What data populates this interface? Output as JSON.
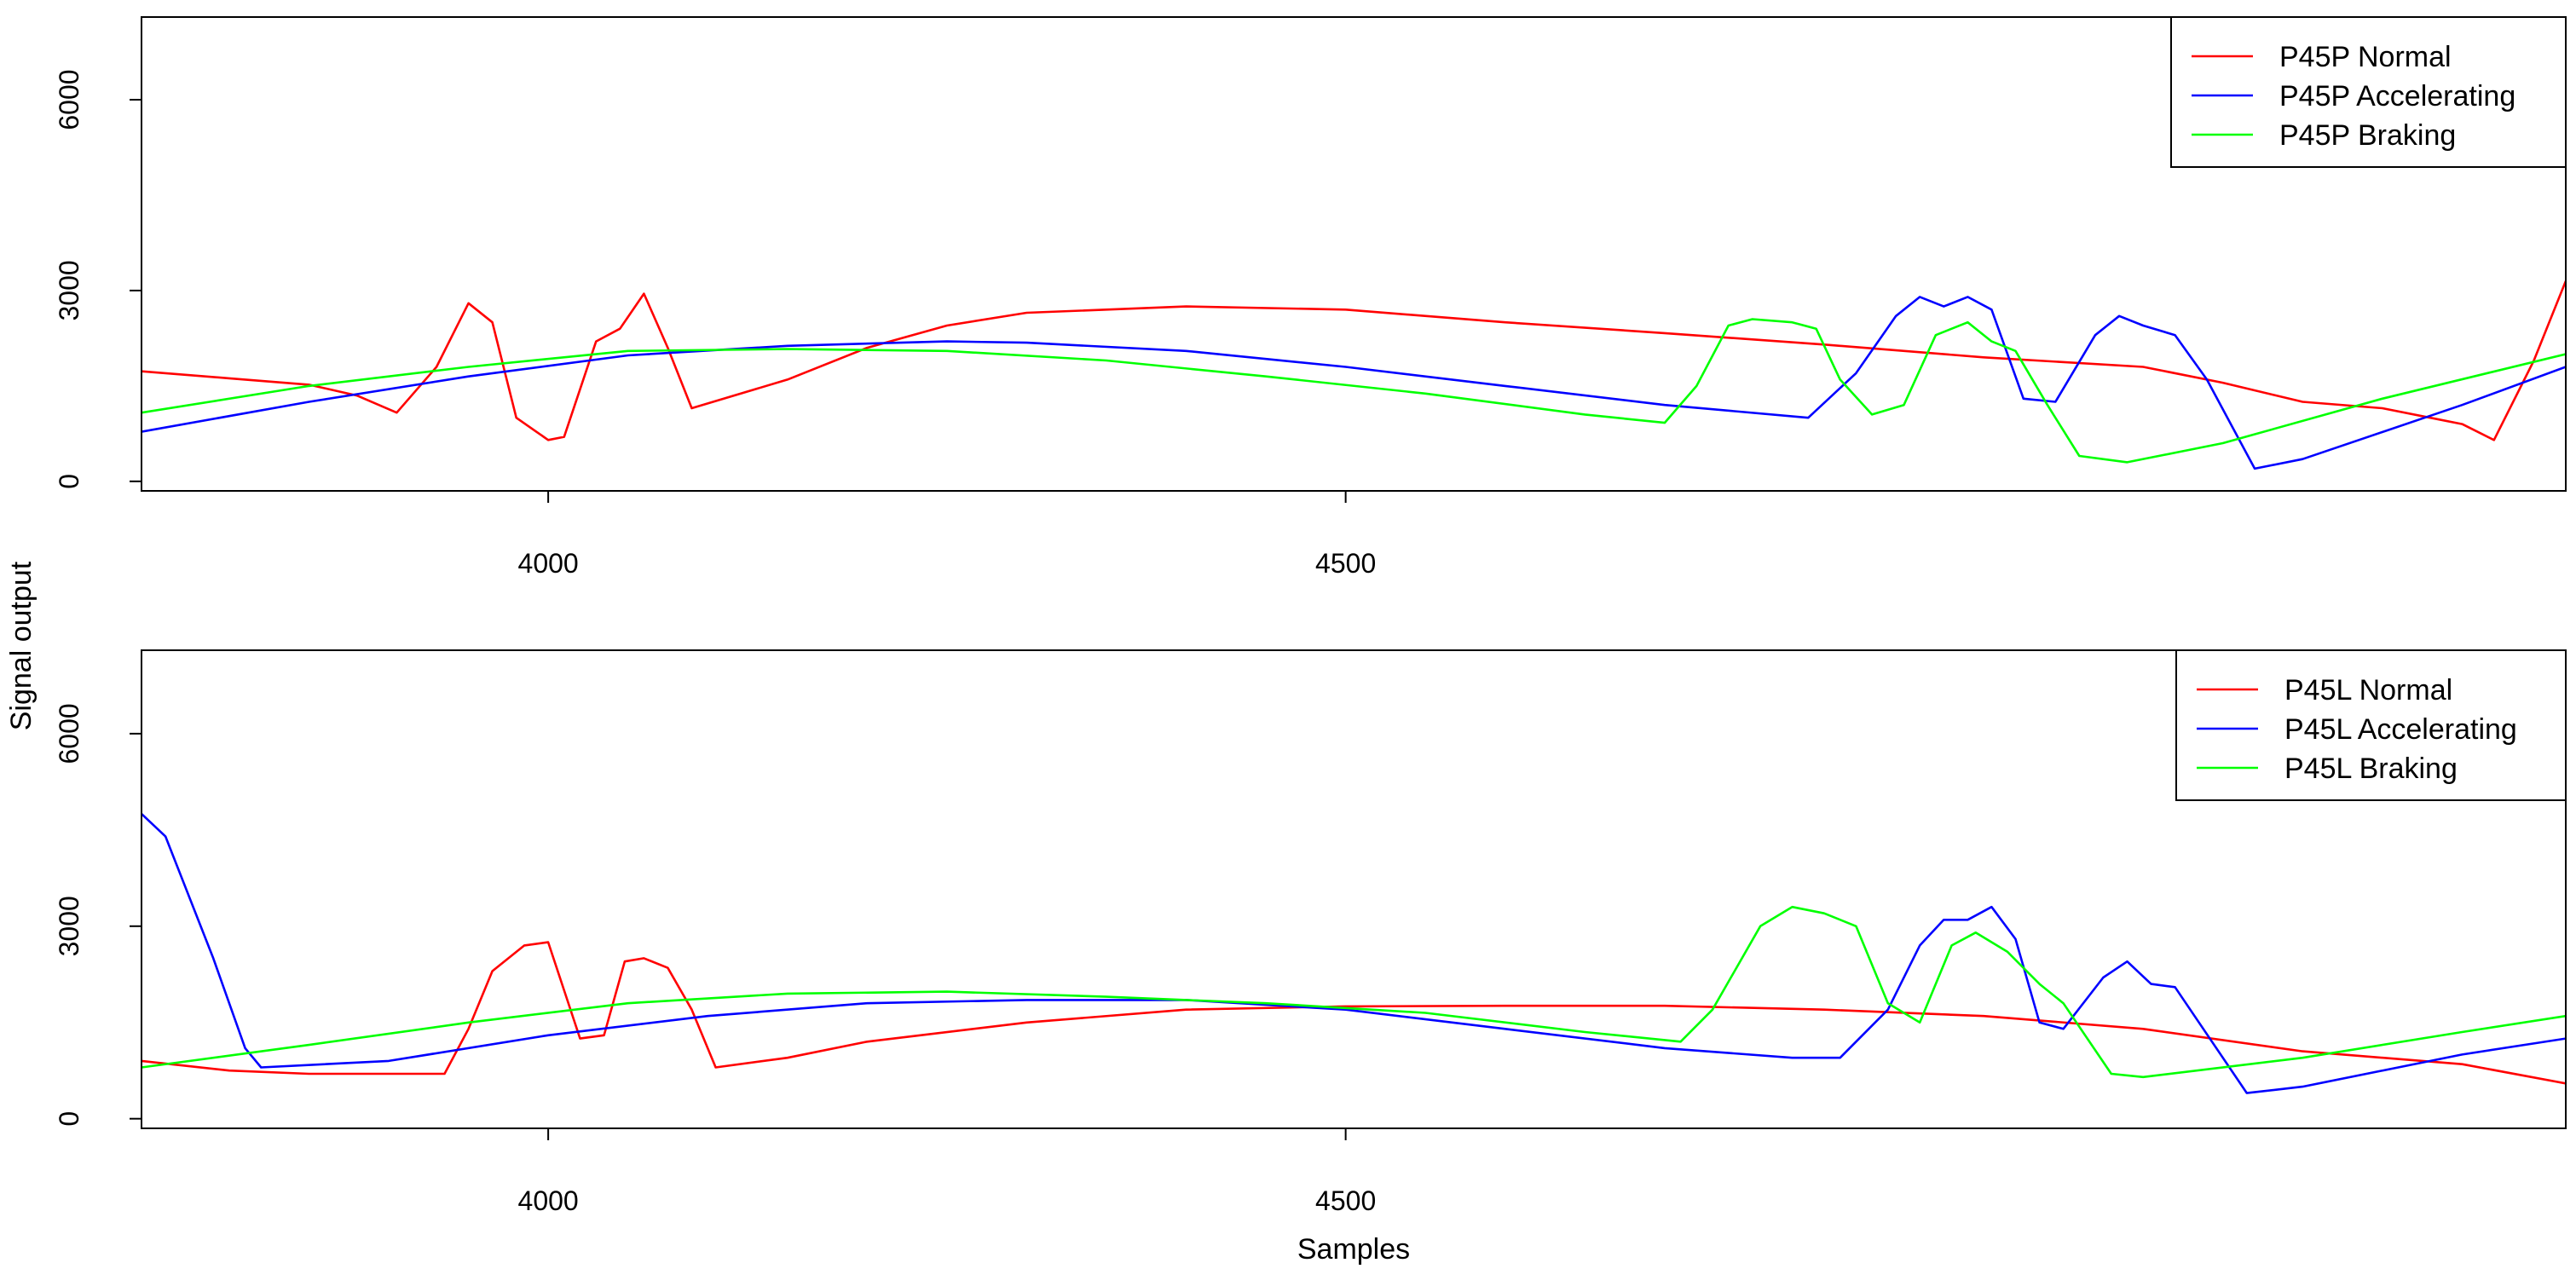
{
  "chart_data": [
    {
      "type": "line",
      "xlim": [
        3745,
        5265
      ],
      "ylim": [
        -150,
        7300
      ],
      "xticks": [
        4000,
        4500
      ],
      "yticks": [
        0,
        3000,
        6000
      ],
      "xtick_labels": [
        "4000",
        "4500"
      ],
      "ytick_labels": [
        "0",
        "3000",
        "6000"
      ],
      "legend_position": "top-right",
      "grid": false,
      "series": [
        {
          "name": "P45P Normal",
          "color": "#ff0000",
          "points": [
            [
              3745,
              1730
            ],
            [
              3800,
              1620
            ],
            [
              3850,
              1520
            ],
            [
              3880,
              1350
            ],
            [
              3905,
              1080
            ],
            [
              3930,
              1800
            ],
            [
              3950,
              2800
            ],
            [
              3965,
              2500
            ],
            [
              3980,
              1000
            ],
            [
              4000,
              650
            ],
            [
              4010,
              700
            ],
            [
              4030,
              2200
            ],
            [
              4045,
              2400
            ],
            [
              4060,
              2950
            ],
            [
              4075,
              2100
            ],
            [
              4090,
              1150
            ],
            [
              4150,
              1600
            ],
            [
              4200,
              2100
            ],
            [
              4250,
              2450
            ],
            [
              4300,
              2650
            ],
            [
              4400,
              2750
            ],
            [
              4500,
              2700
            ],
            [
              4600,
              2500
            ],
            [
              4700,
              2330
            ],
            [
              4800,
              2150
            ],
            [
              4900,
              1950
            ],
            [
              5000,
              1800
            ],
            [
              5050,
              1550
            ],
            [
              5100,
              1250
            ],
            [
              5150,
              1150
            ],
            [
              5180,
              1000
            ],
            [
              5200,
              900
            ],
            [
              5220,
              650
            ],
            [
              5245,
              1900
            ],
            [
              5265,
              3150
            ]
          ]
        },
        {
          "name": "P45P Accelerating",
          "color": "#0000ff",
          "points": [
            [
              3745,
              780
            ],
            [
              3850,
              1250
            ],
            [
              3950,
              1650
            ],
            [
              4050,
              1980
            ],
            [
              4150,
              2130
            ],
            [
              4250,
              2200
            ],
            [
              4300,
              2180
            ],
            [
              4400,
              2050
            ],
            [
              4500,
              1800
            ],
            [
              4600,
              1500
            ],
            [
              4700,
              1200
            ],
            [
              4790,
              1000
            ],
            [
              4820,
              1700
            ],
            [
              4845,
              2600
            ],
            [
              4860,
              2900
            ],
            [
              4875,
              2750
            ],
            [
              4890,
              2900
            ],
            [
              4905,
              2700
            ],
            [
              4925,
              1300
            ],
            [
              4945,
              1250
            ],
            [
              4970,
              2300
            ],
            [
              4985,
              2600
            ],
            [
              5000,
              2450
            ],
            [
              5020,
              2300
            ],
            [
              5040,
              1600
            ],
            [
              5070,
              200
            ],
            [
              5100,
              350
            ],
            [
              5200,
              1200
            ],
            [
              5265,
              1800
            ]
          ]
        },
        {
          "name": "P45P Braking",
          "color": "#00ff00",
          "points": [
            [
              3745,
              1080
            ],
            [
              3850,
              1500
            ],
            [
              3950,
              1800
            ],
            [
              4050,
              2050
            ],
            [
              4150,
              2080
            ],
            [
              4250,
              2050
            ],
            [
              4350,
              1900
            ],
            [
              4450,
              1650
            ],
            [
              4550,
              1380
            ],
            [
              4650,
              1050
            ],
            [
              4700,
              920
            ],
            [
              4720,
              1500
            ],
            [
              4740,
              2450
            ],
            [
              4755,
              2550
            ],
            [
              4780,
              2500
            ],
            [
              4795,
              2400
            ],
            [
              4810,
              1600
            ],
            [
              4830,
              1050
            ],
            [
              4850,
              1200
            ],
            [
              4870,
              2300
            ],
            [
              4890,
              2500
            ],
            [
              4905,
              2200
            ],
            [
              4920,
              2050
            ],
            [
              4940,
              1200
            ],
            [
              4960,
              400
            ],
            [
              4990,
              300
            ],
            [
              5050,
              600
            ],
            [
              5150,
              1300
            ],
            [
              5265,
              2000
            ]
          ]
        }
      ]
    },
    {
      "type": "line",
      "xlim": [
        3745,
        5265
      ],
      "ylim": [
        -150,
        7300
      ],
      "xticks": [
        4000,
        4500
      ],
      "yticks": [
        0,
        3000,
        6000
      ],
      "xtick_labels": [
        "4000",
        "4500"
      ],
      "ytick_labels": [
        "0",
        "3000",
        "6000"
      ],
      "xlabel": "Samples",
      "legend_position": "top-right",
      "grid": false,
      "series": [
        {
          "name": "P45L Normal",
          "color": "#ff0000",
          "points": [
            [
              3745,
              900
            ],
            [
              3800,
              750
            ],
            [
              3850,
              700
            ],
            [
              3935,
              700
            ],
            [
              3950,
              1400
            ],
            [
              3965,
              2300
            ],
            [
              3985,
              2700
            ],
            [
              4000,
              2750
            ],
            [
              4010,
              2000
            ],
            [
              4020,
              1250
            ],
            [
              4035,
              1300
            ],
            [
              4048,
              2450
            ],
            [
              4060,
              2500
            ],
            [
              4075,
              2350
            ],
            [
              4090,
              1700
            ],
            [
              4105,
              800
            ],
            [
              4150,
              950
            ],
            [
              4200,
              1200
            ],
            [
              4300,
              1500
            ],
            [
              4400,
              1700
            ],
            [
              4500,
              1750
            ],
            [
              4600,
              1760
            ],
            [
              4700,
              1760
            ],
            [
              4800,
              1700
            ],
            [
              4900,
              1600
            ],
            [
              5000,
              1400
            ],
            [
              5100,
              1050
            ],
            [
              5200,
              850
            ],
            [
              5265,
              550
            ]
          ]
        },
        {
          "name": "P45L Accelerating",
          "color": "#0000ff",
          "points": [
            [
              3745,
              4750
            ],
            [
              3760,
              4400
            ],
            [
              3790,
              2500
            ],
            [
              3810,
              1100
            ],
            [
              3820,
              800
            ],
            [
              3900,
              900
            ],
            [
              4000,
              1300
            ],
            [
              4100,
              1600
            ],
            [
              4200,
              1800
            ],
            [
              4300,
              1850
            ],
            [
              4400,
              1850
            ],
            [
              4500,
              1700
            ],
            [
              4600,
              1400
            ],
            [
              4700,
              1100
            ],
            [
              4780,
              950
            ],
            [
              4810,
              950
            ],
            [
              4840,
              1700
            ],
            [
              4860,
              2700
            ],
            [
              4875,
              3100
            ],
            [
              4890,
              3100
            ],
            [
              4905,
              3300
            ],
            [
              4920,
              2800
            ],
            [
              4935,
              1500
            ],
            [
              4950,
              1400
            ],
            [
              4975,
              2200
            ],
            [
              4990,
              2450
            ],
            [
              5005,
              2100
            ],
            [
              5020,
              2050
            ],
            [
              5035,
              1500
            ],
            [
              5065,
              400
            ],
            [
              5100,
              500
            ],
            [
              5200,
              1000
            ],
            [
              5265,
              1250
            ]
          ]
        },
        {
          "name": "P45L Braking",
          "color": "#00ff00",
          "points": [
            [
              3745,
              800
            ],
            [
              3850,
              1150
            ],
            [
              3950,
              1500
            ],
            [
              4050,
              1800
            ],
            [
              4150,
              1950
            ],
            [
              4250,
              1980
            ],
            [
              4350,
              1900
            ],
            [
              4450,
              1800
            ],
            [
              4550,
              1650
            ],
            [
              4650,
              1350
            ],
            [
              4710,
              1200
            ],
            [
              4730,
              1700
            ],
            [
              4760,
              3000
            ],
            [
              4780,
              3300
            ],
            [
              4800,
              3200
            ],
            [
              4820,
              3000
            ],
            [
              4840,
              1800
            ],
            [
              4860,
              1500
            ],
            [
              4880,
              2700
            ],
            [
              4895,
              2900
            ],
            [
              4915,
              2600
            ],
            [
              4935,
              2100
            ],
            [
              4950,
              1800
            ],
            [
              4980,
              700
            ],
            [
              5000,
              650
            ],
            [
              5100,
              950
            ],
            [
              5200,
              1350
            ],
            [
              5265,
              1600
            ]
          ]
        }
      ]
    }
  ],
  "shared_ylabel": "Signal output"
}
